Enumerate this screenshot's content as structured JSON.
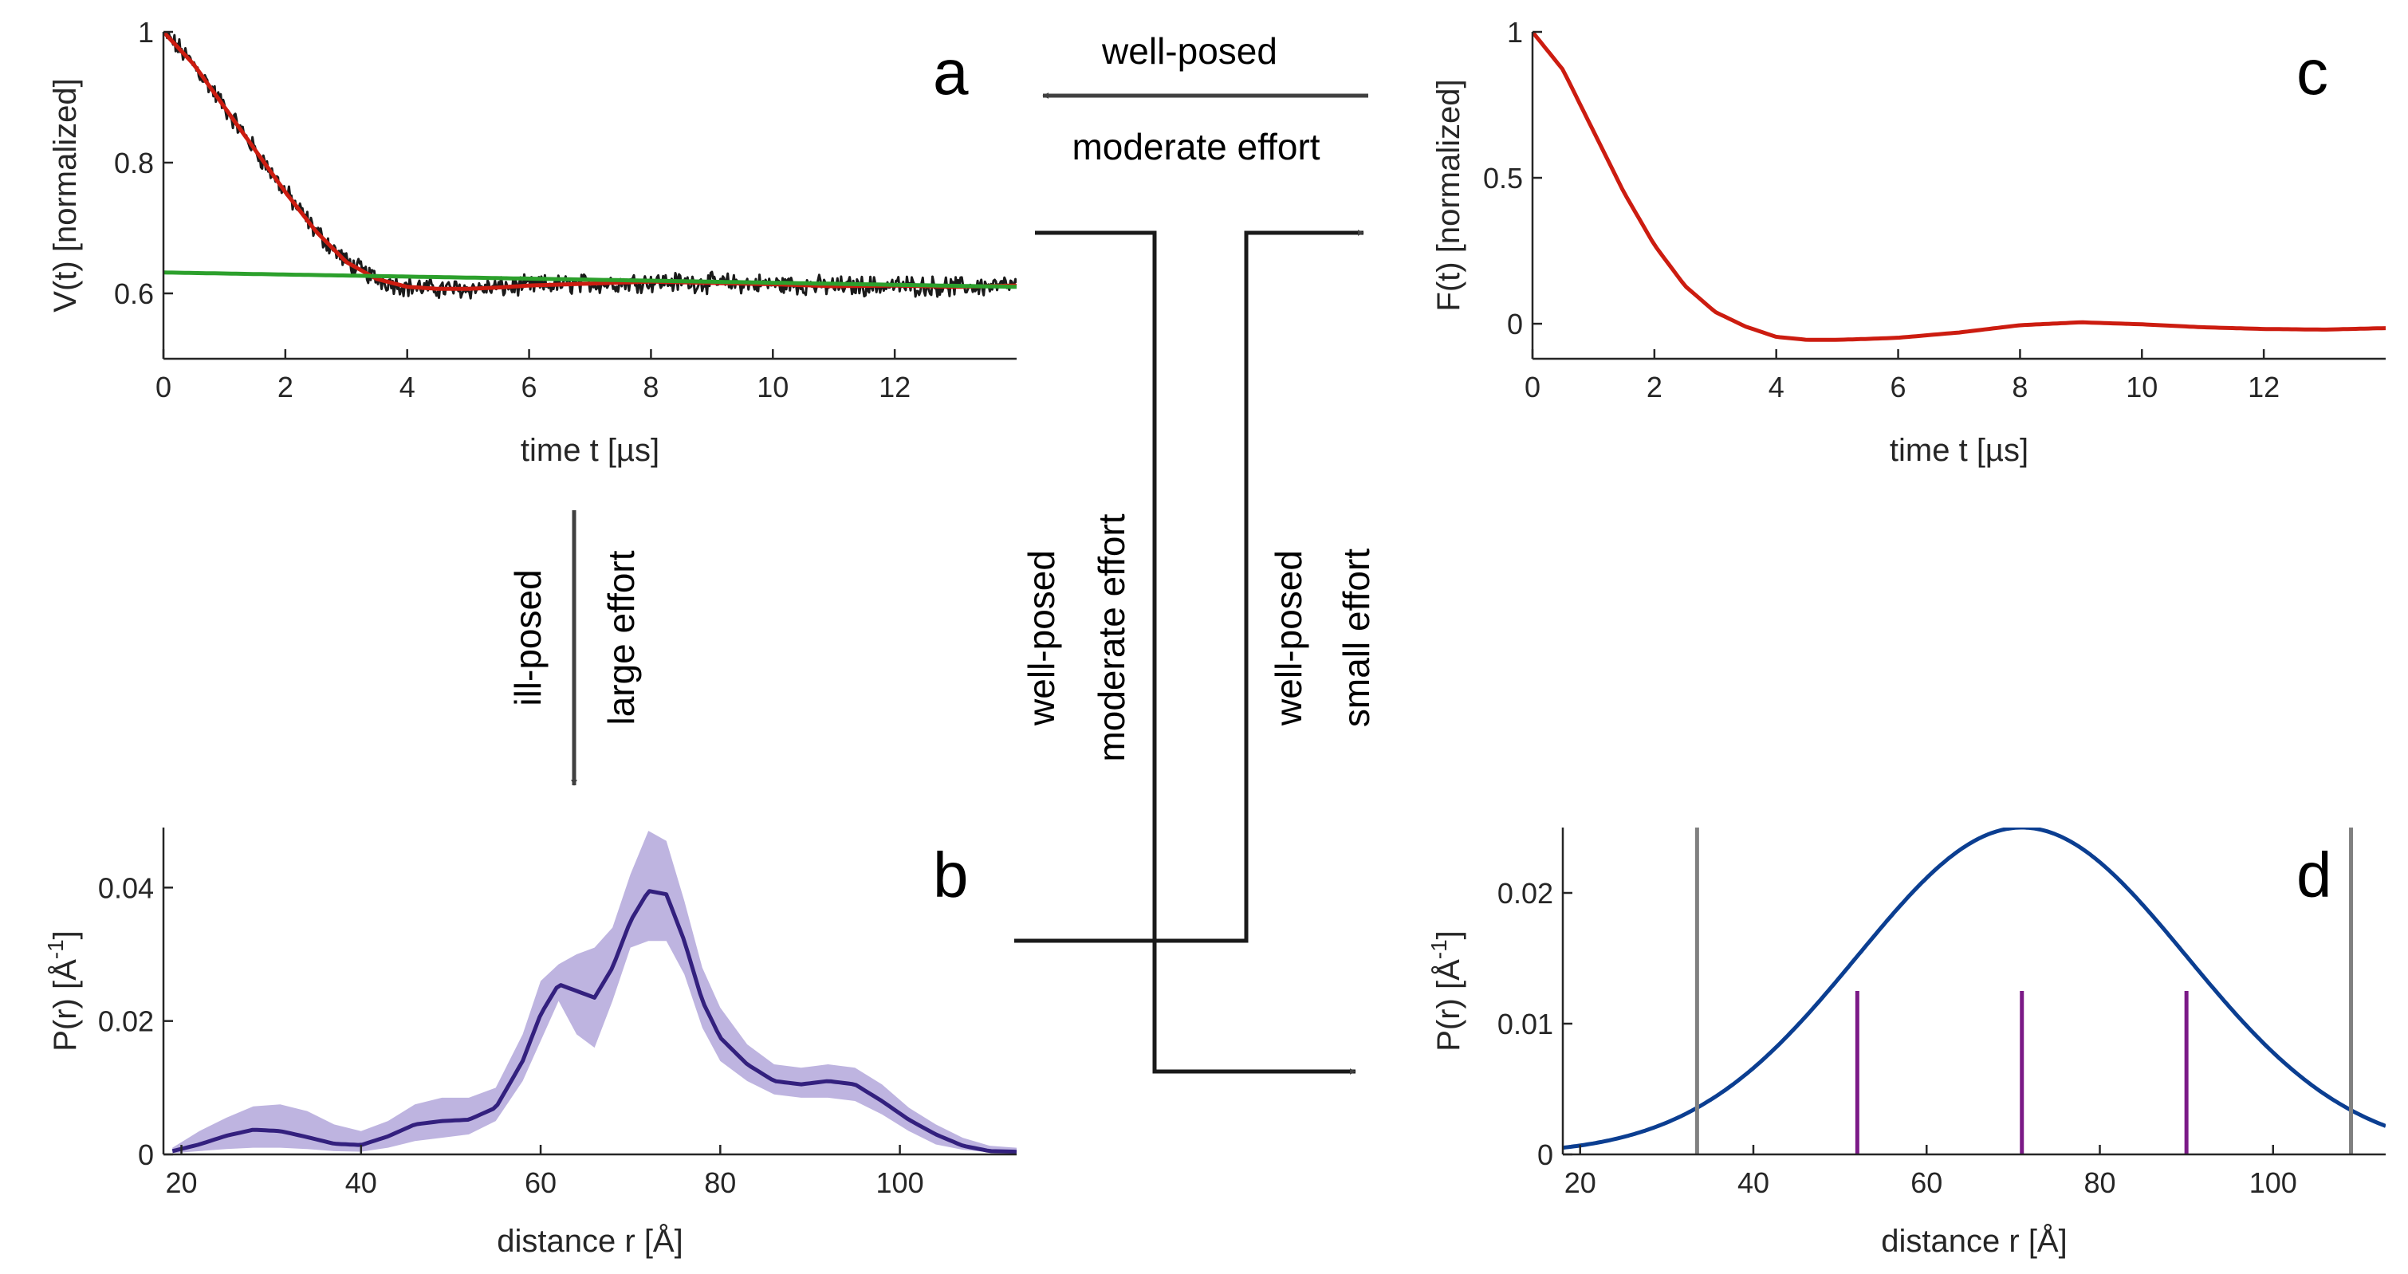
{
  "colors": {
    "axis": "#262626",
    "flow": "#000000",
    "arrow": "#404040",
    "data_trace": "#1a1a1a",
    "fit": "#cc1c10",
    "background": "#2ca02c",
    "distribution": "#33207e",
    "band": "#a89bd6",
    "gaussian": "#0b3e91",
    "edge_lines": "#808080",
    "center_lines": "#7b1a87"
  },
  "annotations": {
    "top_arrow": {
      "line1": "well-posed",
      "line2": "moderate effort"
    },
    "down_arrow": {
      "line1": "ill-posed",
      "line2": "large effort"
    },
    "mid_vertical": {
      "line1": "well-posed",
      "line2": "moderate effort"
    },
    "right_vertical": {
      "line1": "well-posed",
      "line2": "small effort"
    }
  },
  "chart_data": [
    {
      "id": "a",
      "panel_label": "a",
      "type": "line",
      "xlabel": "time t [µs]",
      "ylabel": "V(t) [normalized]",
      "xlim": [
        0,
        14
      ],
      "ylim": [
        0.5,
        1.0
      ],
      "xticks": [
        0,
        2,
        4,
        6,
        8,
        10,
        12
      ],
      "yticks": [
        0.6,
        0.8,
        1
      ],
      "series": [
        {
          "name": "experimental signal",
          "style": "noisy",
          "noise": 0.012,
          "x": [
            0,
            0.5,
            1,
            1.5,
            2,
            2.5,
            3,
            3.5,
            4,
            4.5,
            5,
            5.5,
            6,
            7,
            8,
            9,
            10,
            11,
            12,
            13,
            14
          ],
          "y": [
            1.0,
            0.95,
            0.885,
            0.82,
            0.755,
            0.695,
            0.648,
            0.622,
            0.61,
            0.607,
            0.607,
            0.609,
            0.612,
            0.615,
            0.618,
            0.616,
            0.614,
            0.611,
            0.612,
            0.61,
            0.612
          ]
        },
        {
          "name": "fit",
          "x": [
            0,
            0.5,
            1,
            1.5,
            2,
            2.5,
            3,
            3.5,
            4,
            4.5,
            5,
            5.5,
            6,
            7,
            8,
            9,
            10,
            11,
            12,
            13,
            14
          ],
          "y": [
            1.0,
            0.95,
            0.885,
            0.82,
            0.755,
            0.695,
            0.648,
            0.622,
            0.61,
            0.607,
            0.607,
            0.609,
            0.612,
            0.615,
            0.618,
            0.616,
            0.614,
            0.611,
            0.612,
            0.61,
            0.612
          ]
        },
        {
          "name": "background",
          "x": [
            0,
            14
          ],
          "y": [
            0.632,
            0.61
          ]
        }
      ]
    },
    {
      "id": "b",
      "panel_label": "b",
      "type": "area",
      "xlabel": "distance r [Å]",
      "ylabel": "P(r) [Å",
      "ylabel_exp": "-1",
      "ylabel_close": "]",
      "xlim": [
        18,
        113
      ],
      "ylim": [
        0,
        0.049
      ],
      "xticks": [
        20,
        40,
        60,
        80,
        100
      ],
      "yticks": [
        0,
        0.02,
        0.04
      ],
      "series": [
        {
          "name": "distance distribution",
          "x": [
            19,
            22,
            25,
            28,
            31,
            34,
            37,
            40,
            43,
            46,
            49,
            52,
            55,
            58,
            60,
            62,
            64,
            66,
            68,
            70,
            72,
            74,
            76,
            78,
            80,
            83,
            86,
            89,
            92,
            95,
            98,
            101,
            104,
            107,
            110,
            113
          ],
          "y": [
            0.0005,
            0.0015,
            0.0028,
            0.0037,
            0.0035,
            0.0026,
            0.0016,
            0.0014,
            0.0027,
            0.0045,
            0.005,
            0.0052,
            0.007,
            0.014,
            0.021,
            0.0255,
            0.0245,
            0.0235,
            0.028,
            0.035,
            0.0395,
            0.039,
            0.032,
            0.023,
            0.0175,
            0.0135,
            0.011,
            0.0105,
            0.011,
            0.0105,
            0.008,
            0.0052,
            0.003,
            0.0013,
            0.0005,
            0.0004
          ],
          "lower": [
            0.0002,
            0.0005,
            0.0008,
            0.001,
            0.001,
            0.0008,
            0.0005,
            0.0004,
            0.001,
            0.002,
            0.0025,
            0.003,
            0.005,
            0.011,
            0.017,
            0.023,
            0.018,
            0.016,
            0.023,
            0.031,
            0.032,
            0.032,
            0.027,
            0.019,
            0.014,
            0.011,
            0.009,
            0.0085,
            0.0085,
            0.008,
            0.006,
            0.0035,
            0.0015,
            0.0007,
            0.0003,
            0.0002
          ],
          "upper": [
            0.001,
            0.0035,
            0.0055,
            0.0072,
            0.0075,
            0.0065,
            0.0045,
            0.0035,
            0.005,
            0.0075,
            0.0085,
            0.0085,
            0.01,
            0.018,
            0.026,
            0.0285,
            0.03,
            0.031,
            0.034,
            0.042,
            0.0485,
            0.047,
            0.038,
            0.028,
            0.022,
            0.0165,
            0.0135,
            0.013,
            0.0135,
            0.013,
            0.0105,
            0.007,
            0.0045,
            0.0025,
            0.0013,
            0.001
          ]
        }
      ]
    },
    {
      "id": "c",
      "panel_label": "c",
      "type": "line",
      "xlabel": "time t [µs]",
      "ylabel": "F(t) [normalized]",
      "xlim": [
        0,
        14
      ],
      "ylim": [
        -0.12,
        1.0
      ],
      "xticks": [
        0,
        2,
        4,
        6,
        8,
        10,
        12
      ],
      "yticks": [
        0,
        0.5,
        1
      ],
      "series": [
        {
          "name": "form factor",
          "x": [
            0,
            0.5,
            1,
            1.5,
            2,
            2.5,
            3,
            3.5,
            4,
            4.5,
            5,
            5.5,
            6,
            7,
            8,
            9,
            10,
            11,
            12,
            13,
            14
          ],
          "y": [
            1.0,
            0.87,
            0.66,
            0.45,
            0.27,
            0.13,
            0.04,
            -0.01,
            -0.045,
            -0.055,
            -0.055,
            -0.052,
            -0.048,
            -0.03,
            -0.005,
            0.005,
            -0.002,
            -0.012,
            -0.018,
            -0.02,
            -0.015
          ]
        }
      ]
    },
    {
      "id": "d",
      "panel_label": "d",
      "type": "line",
      "xlabel": "distance r [Å]",
      "ylabel": "P(r) [Å",
      "ylabel_exp": "-1",
      "ylabel_close": "]",
      "xlim": [
        18,
        113
      ],
      "ylim": [
        0,
        0.025
      ],
      "xticks": [
        20,
        40,
        60,
        80,
        100
      ],
      "yticks": [
        0,
        0.01,
        0.02
      ],
      "series": [
        {
          "name": "gaussian",
          "function": "gaussian",
          "mean": 71,
          "sigma": 19,
          "amplitude": 0.025
        }
      ],
      "markers": {
        "edge_lines": [
          33.5,
          109
        ],
        "center_lines": [
          52,
          71,
          90
        ],
        "center_line_height": 0.0125
      }
    }
  ]
}
